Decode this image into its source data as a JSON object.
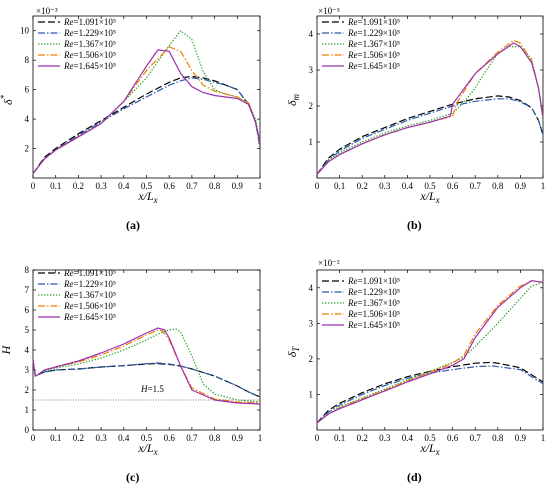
{
  "chart_data": [
    {
      "type": "line",
      "caption": "(a)",
      "xlabel": "x/Lx",
      "ylabel": "δ*",
      "multiplier": "×10⁻³",
      "xlim": [
        0,
        1
      ],
      "ylim": [
        0,
        11
      ],
      "xticks": [
        "0",
        "0.1",
        "0.2",
        "0.3",
        "0.4",
        "0.5",
        "0.6",
        "0.7",
        "0.8",
        "0.9",
        "1"
      ],
      "yticks": [
        "2",
        "4",
        "6",
        "8",
        "10"
      ],
      "legend": "top-left",
      "series": [
        {
          "name": "Re=1.091×10⁵",
          "color": "#000000",
          "dash": "long-dash",
          "x": [
            0,
            0.05,
            0.1,
            0.2,
            0.3,
            0.4,
            0.5,
            0.6,
            0.65,
            0.7,
            0.75,
            0.8,
            0.85,
            0.9,
            0.95,
            0.98,
            1.0
          ],
          "y": [
            0.3,
            1.4,
            2.0,
            3.0,
            3.9,
            4.8,
            5.7,
            6.5,
            6.8,
            6.9,
            6.8,
            6.6,
            6.3,
            6.0,
            5.0,
            3.8,
            2.2
          ]
        },
        {
          "name": "Re=1.229×10⁵",
          "color": "#2a5caa",
          "dash": "dash-dot",
          "x": [
            0,
            0.05,
            0.1,
            0.2,
            0.3,
            0.4,
            0.5,
            0.6,
            0.65,
            0.7,
            0.75,
            0.8,
            0.85,
            0.9,
            0.95,
            0.98,
            1.0
          ],
          "y": [
            0.3,
            1.3,
            1.9,
            2.9,
            3.8,
            4.7,
            5.5,
            6.3,
            6.6,
            6.8,
            6.7,
            6.5,
            6.3,
            6.0,
            5.0,
            3.8,
            2.0
          ]
        },
        {
          "name": "Re=1.367×10⁵",
          "color": "#2ca02c",
          "dash": "dotted",
          "x": [
            0,
            0.05,
            0.1,
            0.2,
            0.3,
            0.4,
            0.5,
            0.6,
            0.65,
            0.7,
            0.75,
            0.8,
            0.85,
            0.9,
            0.95,
            0.98,
            1.0
          ],
          "y": [
            0.3,
            1.3,
            1.9,
            2.8,
            3.7,
            5.2,
            6.8,
            9.0,
            10.0,
            9.4,
            7.2,
            6.0,
            5.7,
            5.5,
            5.1,
            4.0,
            2.5
          ]
        },
        {
          "name": "Re=1.506×10⁵",
          "color": "#f08000",
          "dash": "dash-dot",
          "x": [
            0,
            0.05,
            0.1,
            0.2,
            0.3,
            0.4,
            0.5,
            0.6,
            0.65,
            0.7,
            0.75,
            0.8,
            0.85,
            0.9,
            0.95,
            0.98,
            1.0
          ],
          "y": [
            0.3,
            1.3,
            1.9,
            2.8,
            3.7,
            5.2,
            7.3,
            8.9,
            8.6,
            7.3,
            6.3,
            5.9,
            5.7,
            5.5,
            5.1,
            3.8,
            2.3
          ]
        },
        {
          "name": "Re=1.645×10⁵",
          "color": "#9b30b0",
          "dash": "solid",
          "x": [
            0,
            0.05,
            0.1,
            0.2,
            0.3,
            0.4,
            0.5,
            0.55,
            0.6,
            0.65,
            0.7,
            0.75,
            0.8,
            0.85,
            0.9,
            0.95,
            0.98,
            1.0
          ],
          "y": [
            0.3,
            1.3,
            1.9,
            2.8,
            3.7,
            5.2,
            7.6,
            8.7,
            8.6,
            7.1,
            6.2,
            5.8,
            5.6,
            5.5,
            5.4,
            5.0,
            3.8,
            2.4
          ]
        }
      ]
    },
    {
      "type": "line",
      "caption": "(b)",
      "xlabel": "x/Lx",
      "ylabel": "δm",
      "multiplier": "×10⁻³",
      "xlim": [
        0,
        1
      ],
      "ylim": [
        0,
        4.5
      ],
      "xticks": [
        "0",
        "0.1",
        "0.2",
        "0.3",
        "0.4",
        "0.5",
        "0.6",
        "0.7",
        "0.8",
        "0.9",
        "1"
      ],
      "yticks": [
        "1",
        "2",
        "3",
        "4"
      ],
      "legend": "top-left",
      "series": [
        {
          "name": "Re=1.091×10⁵",
          "color": "#000000",
          "dash": "long-dash",
          "x": [
            0,
            0.05,
            0.1,
            0.2,
            0.3,
            0.4,
            0.5,
            0.6,
            0.7,
            0.8,
            0.85,
            0.9,
            0.95,
            0.98,
            1.0
          ],
          "y": [
            0.1,
            0.55,
            0.8,
            1.15,
            1.4,
            1.65,
            1.85,
            2.05,
            2.2,
            2.28,
            2.25,
            2.15,
            1.95,
            1.6,
            1.2
          ]
        },
        {
          "name": "Re=1.229×10⁵",
          "color": "#2a5caa",
          "dash": "dash-dot",
          "x": [
            0,
            0.05,
            0.1,
            0.2,
            0.3,
            0.4,
            0.5,
            0.6,
            0.7,
            0.8,
            0.85,
            0.9,
            0.95,
            0.98,
            1.0
          ],
          "y": [
            0.1,
            0.5,
            0.75,
            1.1,
            1.35,
            1.6,
            1.8,
            2.0,
            2.13,
            2.2,
            2.2,
            2.12,
            1.95,
            1.6,
            1.2
          ]
        },
        {
          "name": "Re=1.367×10⁵",
          "color": "#2ca02c",
          "dash": "dotted",
          "x": [
            0,
            0.05,
            0.1,
            0.2,
            0.3,
            0.4,
            0.5,
            0.6,
            0.65,
            0.7,
            0.75,
            0.8,
            0.85,
            0.9,
            0.95,
            0.98,
            1.0
          ],
          "y": [
            0.1,
            0.5,
            0.7,
            1.0,
            1.25,
            1.45,
            1.6,
            1.8,
            2.1,
            2.5,
            3.0,
            3.45,
            3.65,
            3.65,
            3.3,
            2.5,
            1.6
          ]
        },
        {
          "name": "Re=1.506×10⁵",
          "color": "#f08000",
          "dash": "dash-dot",
          "x": [
            0,
            0.05,
            0.1,
            0.2,
            0.3,
            0.4,
            0.5,
            0.6,
            0.62,
            0.7,
            0.8,
            0.87,
            0.9,
            0.95,
            0.98,
            1.0
          ],
          "y": [
            0.1,
            0.45,
            0.65,
            0.95,
            1.2,
            1.4,
            1.55,
            1.72,
            2.1,
            2.9,
            3.5,
            3.82,
            3.75,
            3.25,
            2.5,
            1.7
          ]
        },
        {
          "name": "Re=1.645×10⁵",
          "color": "#9b30b0",
          "dash": "solid",
          "x": [
            0,
            0.05,
            0.1,
            0.2,
            0.3,
            0.4,
            0.5,
            0.59,
            0.6,
            0.7,
            0.8,
            0.87,
            0.9,
            0.95,
            0.98,
            1.0
          ],
          "y": [
            0.1,
            0.45,
            0.65,
            0.95,
            1.2,
            1.4,
            1.55,
            1.72,
            2.05,
            2.9,
            3.45,
            3.75,
            3.65,
            3.2,
            2.5,
            1.7
          ]
        }
      ]
    },
    {
      "type": "line",
      "caption": "(c)",
      "xlabel": "x/Lx",
      "ylabel": "H",
      "annotation": "H=1.5",
      "xlim": [
        0,
        1
      ],
      "ylim": [
        0,
        8
      ],
      "xticks": [
        "0",
        "0.1",
        "0.2",
        "0.3",
        "0.4",
        "0.5",
        "0.6",
        "0.7",
        "0.8",
        "0.9",
        "1"
      ],
      "yticks": [
        "0",
        "1",
        "2",
        "3",
        "4",
        "5",
        "6",
        "7",
        "8"
      ],
      "legend": "top-left",
      "series": [
        {
          "name": "Re=1.091×10⁵",
          "color": "#000000",
          "dash": "long-dash",
          "x": [
            0,
            0.01,
            0.02,
            0.05,
            0.1,
            0.2,
            0.3,
            0.4,
            0.5,
            0.55,
            0.6,
            0.65,
            0.7,
            0.8,
            0.9,
            0.95,
            1.0
          ],
          "y": [
            3.5,
            2.7,
            2.75,
            2.9,
            3.0,
            3.05,
            3.15,
            3.22,
            3.3,
            3.32,
            3.28,
            3.2,
            3.05,
            2.7,
            2.2,
            1.9,
            1.65
          ]
        },
        {
          "name": "Re=1.229×10⁵",
          "color": "#2a5caa",
          "dash": "dash-dot",
          "x": [
            0,
            0.01,
            0.02,
            0.05,
            0.1,
            0.2,
            0.3,
            0.4,
            0.5,
            0.55,
            0.6,
            0.65,
            0.7,
            0.8,
            0.9,
            0.95,
            1.0
          ],
          "y": [
            3.5,
            2.7,
            2.75,
            2.9,
            3.0,
            3.05,
            3.15,
            3.22,
            3.32,
            3.35,
            3.3,
            3.2,
            3.05,
            2.7,
            2.2,
            1.9,
            1.65
          ]
        },
        {
          "name": "Re=1.367×10⁵",
          "color": "#2ca02c",
          "dash": "dotted",
          "x": [
            0,
            0.01,
            0.02,
            0.05,
            0.1,
            0.2,
            0.3,
            0.4,
            0.5,
            0.55,
            0.6,
            0.63,
            0.65,
            0.7,
            0.75,
            0.8,
            0.9,
            1.0
          ],
          "y": [
            3.5,
            2.7,
            2.75,
            2.95,
            3.1,
            3.3,
            3.6,
            4.0,
            4.5,
            4.8,
            5.0,
            5.05,
            4.9,
            3.7,
            2.3,
            1.8,
            1.5,
            1.4
          ]
        },
        {
          "name": "Re=1.506×10⁵",
          "color": "#f08000",
          "dash": "dash-dot",
          "x": [
            0,
            0.01,
            0.02,
            0.05,
            0.1,
            0.2,
            0.3,
            0.4,
            0.5,
            0.55,
            0.57,
            0.6,
            0.65,
            0.7,
            0.8,
            0.9,
            1.0
          ],
          "y": [
            3.5,
            2.7,
            2.75,
            3.0,
            3.15,
            3.4,
            3.75,
            4.2,
            4.75,
            5.0,
            4.95,
            4.5,
            3.2,
            2.1,
            1.55,
            1.4,
            1.35
          ]
        },
        {
          "name": "Re=1.645×10⁵",
          "color": "#9b30b0",
          "dash": "solid",
          "x": [
            0,
            0.01,
            0.02,
            0.05,
            0.1,
            0.2,
            0.3,
            0.4,
            0.5,
            0.55,
            0.58,
            0.6,
            0.65,
            0.7,
            0.8,
            0.9,
            1.0
          ],
          "y": [
            3.5,
            2.7,
            2.75,
            3.0,
            3.15,
            3.45,
            3.85,
            4.3,
            4.85,
            5.1,
            5.0,
            4.6,
            3.2,
            2.0,
            1.5,
            1.35,
            1.3
          ]
        },
        {
          "name": "",
          "color": "#555555",
          "dash": "fine-dot",
          "x": [
            0,
            1
          ],
          "y": [
            1.5,
            1.5
          ]
        }
      ]
    },
    {
      "type": "line",
      "caption": "(d)",
      "xlabel": "x/Lx",
      "ylabel": "δT",
      "multiplier": "×10⁻²",
      "xlim": [
        0,
        1
      ],
      "ylim": [
        0,
        4.5
      ],
      "xticks": [
        "0",
        "0.1",
        "0.2",
        "0.3",
        "0.4",
        "0.5",
        "0.6",
        "0.7",
        "0.8",
        "0.9",
        "1"
      ],
      "yticks": [
        "1",
        "2",
        "3",
        "4"
      ],
      "legend": "top-left",
      "series": [
        {
          "name": "Re=1.091×10⁵",
          "color": "#000000",
          "dash": "long-dash",
          "x": [
            0,
            0.05,
            0.1,
            0.2,
            0.3,
            0.4,
            0.5,
            0.6,
            0.7,
            0.77,
            0.8,
            0.9,
            0.95,
            1.0
          ],
          "y": [
            0.2,
            0.55,
            0.75,
            1.05,
            1.3,
            1.5,
            1.65,
            1.78,
            1.88,
            1.9,
            1.88,
            1.75,
            1.55,
            1.35
          ]
        },
        {
          "name": "Re=1.229×10⁵",
          "color": "#2a5caa",
          "dash": "dash-dot",
          "x": [
            0,
            0.05,
            0.1,
            0.2,
            0.3,
            0.4,
            0.5,
            0.6,
            0.7,
            0.78,
            0.8,
            0.9,
            0.95,
            1.0
          ],
          "y": [
            0.2,
            0.5,
            0.7,
            1.0,
            1.25,
            1.45,
            1.6,
            1.7,
            1.78,
            1.8,
            1.78,
            1.7,
            1.5,
            1.3
          ]
        },
        {
          "name": "Re=1.367×10⁵",
          "color": "#2ca02c",
          "dash": "dotted",
          "x": [
            0,
            0.05,
            0.1,
            0.2,
            0.3,
            0.4,
            0.5,
            0.6,
            0.65,
            0.7,
            0.8,
            0.9,
            0.95,
            1.0
          ],
          "y": [
            0.2,
            0.45,
            0.65,
            0.9,
            1.15,
            1.4,
            1.65,
            1.9,
            2.05,
            2.35,
            3.0,
            3.7,
            4.05,
            4.15
          ]
        },
        {
          "name": "Re=1.506×10⁵",
          "color": "#f08000",
          "dash": "dash-dot",
          "x": [
            0,
            0.05,
            0.1,
            0.2,
            0.3,
            0.4,
            0.5,
            0.6,
            0.65,
            0.7,
            0.8,
            0.9,
            0.95,
            1.0
          ],
          "y": [
            0.2,
            0.45,
            0.62,
            0.88,
            1.12,
            1.38,
            1.62,
            1.88,
            2.1,
            2.7,
            3.5,
            4.05,
            4.2,
            4.15
          ]
        },
        {
          "name": "Re=1.645×10⁵",
          "color": "#9b30b0",
          "dash": "solid",
          "x": [
            0,
            0.05,
            0.1,
            0.2,
            0.3,
            0.4,
            0.5,
            0.6,
            0.65,
            0.7,
            0.8,
            0.9,
            0.95,
            1.0
          ],
          "y": [
            0.2,
            0.45,
            0.6,
            0.85,
            1.1,
            1.35,
            1.58,
            1.82,
            2.0,
            2.6,
            3.45,
            4.0,
            4.2,
            4.15
          ]
        }
      ]
    }
  ]
}
